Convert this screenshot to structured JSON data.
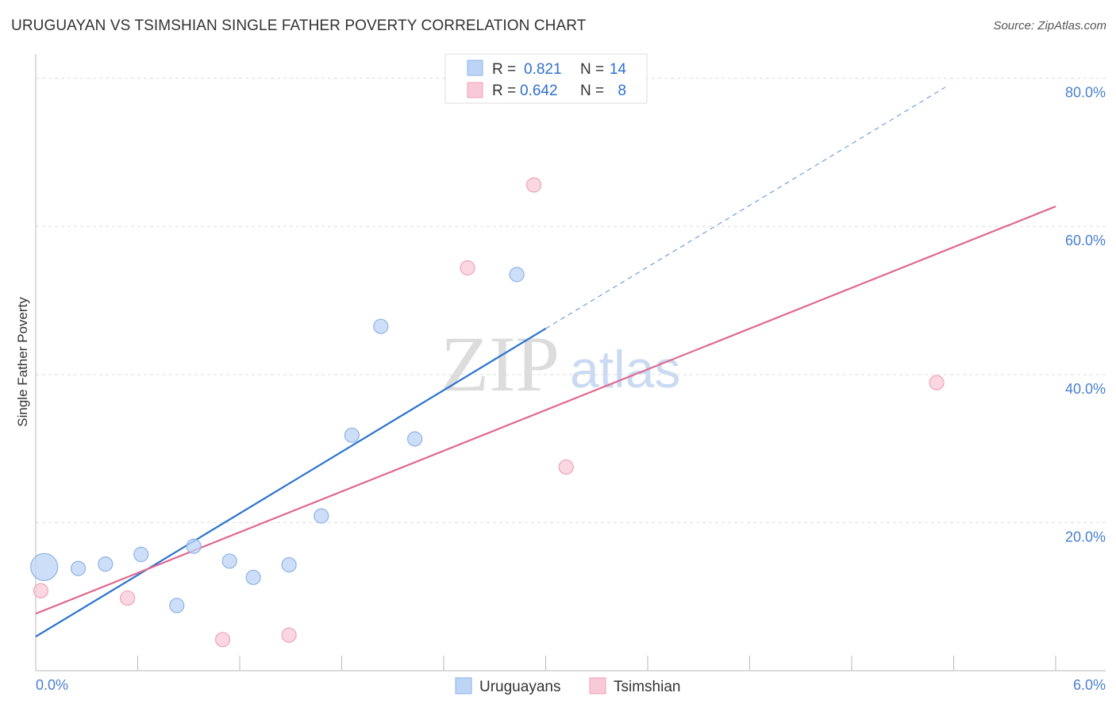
{
  "header": {
    "title": "URUGUAYAN VS TSIMSHIAN SINGLE FATHER POVERTY CORRELATION CHART",
    "source": "Source: ZipAtlas.com"
  },
  "watermark": {
    "zip": "ZIP",
    "atlas": "atlas"
  },
  "legend_top": [
    {
      "r_label": "R =",
      "r_value": "0.821",
      "n_label": "N =",
      "n_value": "14"
    },
    {
      "r_label": "R =",
      "r_value": "0.642",
      "n_label": "N =",
      "n_value": "8"
    }
  ],
  "legend_bottom": [
    "Uruguayans",
    "Tsimshian"
  ],
  "colors": {
    "blue_fill": "#bcd4f5",
    "blue_stroke": "#8db3e6",
    "blue_line": "#2b73cf",
    "pink_fill": "#f9c9d7",
    "pink_stroke": "#eea3b9",
    "pink_line": "#e0688f",
    "grid": "#dddddd",
    "tick_label": "#4a7fd0"
  },
  "chart_data": {
    "type": "scatter",
    "title": "URUGUAYAN VS TSIMSHIAN SINGLE FATHER POVERTY CORRELATION CHART",
    "xlabel": "",
    "ylabel": "Single Father Poverty",
    "xlim": [
      0,
      6
    ],
    "ylim": [
      0,
      82
    ],
    "x_tick_labels": [
      "0.0%",
      "6.0%"
    ],
    "y_ticks": [
      20,
      40,
      60,
      80
    ],
    "y_tick_labels": [
      "20.0%",
      "40.0%",
      "60.0%",
      "80.0%"
    ],
    "grid": true,
    "legend_position": "top-center",
    "series": [
      {
        "name": "Uruguayans",
        "r": 0.821,
        "n": 14,
        "points": [
          {
            "x": 0.05,
            "y": 14.0,
            "big": true
          },
          {
            "x": 0.25,
            "y": 13.8
          },
          {
            "x": 0.41,
            "y": 14.4
          },
          {
            "x": 0.62,
            "y": 15.7
          },
          {
            "x": 0.83,
            "y": 8.8
          },
          {
            "x": 0.93,
            "y": 16.8
          },
          {
            "x": 1.14,
            "y": 14.8
          },
          {
            "x": 1.28,
            "y": 12.6
          },
          {
            "x": 1.49,
            "y": 14.3
          },
          {
            "x": 1.68,
            "y": 20.9
          },
          {
            "x": 1.86,
            "y": 31.8
          },
          {
            "x": 2.03,
            "y": 46.5
          },
          {
            "x": 2.23,
            "y": 31.3
          },
          {
            "x": 2.83,
            "y": 53.5
          }
        ],
        "trend": {
          "x0": 0.0,
          "y0": 4.6,
          "x1": 3.0,
          "y1": 46.2,
          "dash_to_x": 5.35
        }
      },
      {
        "name": "Tsimshian",
        "r": 0.642,
        "n": 8,
        "points": [
          {
            "x": 0.03,
            "y": 10.8
          },
          {
            "x": 0.54,
            "y": 9.8
          },
          {
            "x": 1.1,
            "y": 4.2
          },
          {
            "x": 1.49,
            "y": 4.8
          },
          {
            "x": 2.54,
            "y": 54.4
          },
          {
            "x": 2.93,
            "y": 65.6
          },
          {
            "x": 3.12,
            "y": 27.5
          },
          {
            "x": 5.3,
            "y": 38.9
          }
        ],
        "trend": {
          "x0": 0.0,
          "y0": 7.7,
          "x1": 6.0,
          "y1": 62.7
        }
      }
    ]
  }
}
